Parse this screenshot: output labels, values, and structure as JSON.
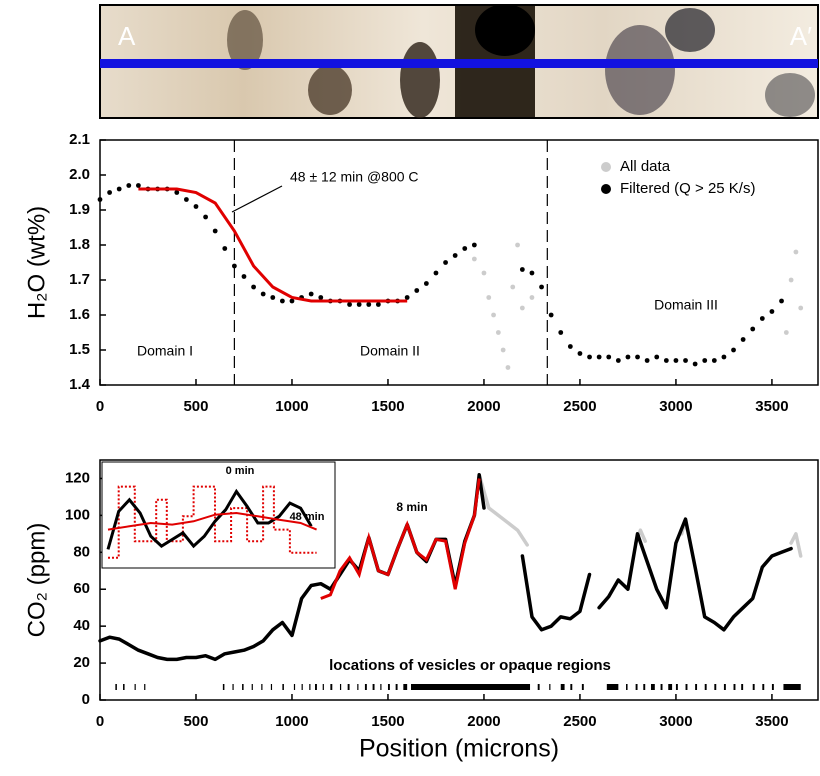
{
  "profile_labels": {
    "left": "A",
    "right": "A′"
  },
  "chart_data": [
    {
      "type": "scatter",
      "ylabel": "H₂O (wt%)",
      "xlim": [
        0,
        3740
      ],
      "xticks": [
        0,
        500,
        1000,
        1500,
        2000,
        2500,
        3000,
        3500
      ],
      "ylim": [
        1.4,
        2.1
      ],
      "yticks": [
        1.4,
        1.5,
        1.6,
        1.7,
        1.8,
        1.9,
        {
          "value": 2,
          "label": "2.0"
        },
        2.1
      ],
      "legend": "upper right",
      "series": [
        {
          "name": "All data",
          "color": "#cccccc",
          "x": [
            1950,
            2000,
            2025,
            2050,
            2075,
            2100,
            2125,
            2150,
            2175,
            2200,
            2250,
            3575,
            3600,
            3625,
            3650
          ],
          "values": [
            1.76,
            1.72,
            1.65,
            1.6,
            1.55,
            1.5,
            1.45,
            1.68,
            1.8,
            1.62,
            1.65,
            1.55,
            1.7,
            1.78,
            1.62
          ]
        },
        {
          "name": "Filtered (Q > 25 K/s)",
          "color": "#000000",
          "x": [
            0,
            50,
            100,
            150,
            200,
            250,
            300,
            350,
            400,
            450,
            500,
            550,
            600,
            650,
            700,
            750,
            800,
            850,
            900,
            950,
            1000,
            1050,
            1100,
            1150,
            1200,
            1250,
            1300,
            1350,
            1400,
            1450,
            1500,
            1550,
            1600,
            1650,
            1700,
            1750,
            1800,
            1850,
            1900,
            1950,
            2200,
            2250,
            2300,
            2350,
            2400,
            2450,
            2500,
            2550,
            2600,
            2650,
            2700,
            2750,
            2800,
            2850,
            2900,
            2950,
            3000,
            3050,
            3100,
            3150,
            3200,
            3250,
            3300,
            3350,
            3400,
            3450,
            3500,
            3550
          ],
          "values": [
            1.93,
            1.95,
            1.96,
            1.97,
            1.97,
            1.96,
            1.96,
            1.96,
            1.95,
            1.93,
            1.91,
            1.88,
            1.84,
            1.79,
            1.74,
            1.71,
            1.68,
            1.66,
            1.65,
            1.64,
            1.64,
            1.65,
            1.66,
            1.65,
            1.64,
            1.64,
            1.63,
            1.63,
            1.63,
            1.63,
            1.64,
            1.64,
            1.65,
            1.67,
            1.69,
            1.72,
            1.75,
            1.77,
            1.79,
            1.8,
            1.73,
            1.72,
            1.68,
            1.6,
            1.55,
            1.51,
            1.49,
            1.48,
            1.48,
            1.48,
            1.47,
            1.48,
            1.48,
            1.47,
            1.48,
            1.47,
            1.47,
            1.47,
            1.46,
            1.47,
            1.47,
            1.48,
            1.5,
            1.53,
            1.56,
            1.59,
            1.61,
            1.64
          ]
        }
      ],
      "fit": {
        "color": "#e00000",
        "x": [
          200,
          300,
          400,
          500,
          600,
          700,
          800,
          900,
          1000,
          1100,
          1200,
          1300,
          1400,
          1500,
          1600
        ],
        "values": [
          1.96,
          1.96,
          1.96,
          1.95,
          1.92,
          1.84,
          1.74,
          1.68,
          1.65,
          1.64,
          1.64,
          1.64,
          1.64,
          1.64,
          1.64
        ]
      },
      "vlines": [
        700,
        2330
      ],
      "annotations": {
        "fit_label": "48 ± 12 min @800 C",
        "domains": [
          "Domain I",
          "Domain II",
          "Domain III"
        ]
      }
    },
    {
      "type": "line",
      "xlabel": "Position (microns)",
      "ylabel": "CO₂ (ppm)",
      "xlim": [
        0,
        3740
      ],
      "xticks": [
        0,
        500,
        1000,
        1500,
        2000,
        2500,
        3000,
        3500
      ],
      "ylim": [
        0,
        130
      ],
      "yticks": [
        0,
        20,
        40,
        60,
        80,
        100,
        120
      ],
      "series": [
        {
          "color": "#cccccc",
          "x": [
            1975,
            2025,
            2075,
            2125,
            2175,
            2225,
            2500,
            2790,
            2815,
            2840,
            2900,
            3030,
            3045,
            3060,
            3100,
            3600,
            3625,
            3650
          ],
          "values": [
            122,
            104,
            100,
            96,
            92,
            84,
            null,
            85,
            92,
            86,
            null,
            90,
            96,
            92,
            null,
            85,
            90,
            78
          ]
        },
        {
          "color": "#000000",
          "x": [
            0,
            50,
            100,
            150,
            200,
            250,
            300,
            350,
            400,
            450,
            500,
            550,
            600,
            650,
            700,
            750,
            800,
            850,
            900,
            950,
            1000,
            1050,
            1100,
            1150,
            1200,
            1250,
            1300,
            1350,
            1400,
            1450,
            1500,
            1550,
            1600,
            1650,
            1700,
            1750,
            1800,
            1850,
            1900,
            1950,
            1975,
            2000,
            2100,
            2200,
            2250,
            2300,
            2350,
            2400,
            2450,
            2500,
            2550,
            2575,
            2600,
            2650,
            2700,
            2750,
            2800,
            2850,
            2900,
            2950,
            3000,
            3050,
            3100,
            3150,
            3200,
            3250,
            3300,
            3350,
            3400,
            3450,
            3500,
            3550,
            3600
          ],
          "values": [
            32,
            34,
            33,
            30,
            27,
            25,
            23,
            22,
            22,
            23,
            23,
            24,
            22,
            25,
            26,
            27,
            29,
            32,
            38,
            42,
            35,
            55,
            62,
            63,
            60,
            68,
            76,
            70,
            88,
            70,
            68,
            82,
            95,
            80,
            75,
            87,
            87,
            62,
            86,
            100,
            122,
            104,
            null,
            78,
            45,
            38,
            40,
            45,
            44,
            48,
            68,
            null,
            50,
            56,
            65,
            60,
            90,
            75,
            60,
            50,
            85,
            98,
            72,
            45,
            42,
            38,
            45,
            50,
            55,
            72,
            78,
            80,
            82
          ]
        }
      ],
      "fit": {
        "color": "#e00000",
        "x": [
          1150,
          1200,
          1250,
          1300,
          1350,
          1400,
          1450,
          1500,
          1550,
          1600,
          1650,
          1700,
          1750,
          1800,
          1850,
          1900,
          1950,
          1975
        ],
        "values": [
          55,
          57,
          70,
          77,
          68,
          88,
          70,
          68,
          82,
          95,
          80,
          76,
          87,
          86,
          60,
          85,
          100,
          120
        ]
      },
      "vesicle_ranges": [
        [
          80,
          88
        ],
        [
          120,
          128
        ],
        [
          180,
          186
        ],
        [
          230,
          236
        ],
        [
          640,
          648
        ],
        [
          690,
          696
        ],
        [
          740,
          748
        ],
        [
          790,
          796
        ],
        [
          840,
          846
        ],
        [
          890,
          896
        ],
        [
          950,
          958
        ],
        [
          1010,
          1016
        ],
        [
          1050,
          1056
        ],
        [
          1090,
          1096
        ],
        [
          1120,
          1130
        ],
        [
          1160,
          1166
        ],
        [
          1200,
          1210
        ],
        [
          1250,
          1256
        ],
        [
          1290,
          1300
        ],
        [
          1340,
          1346
        ],
        [
          1380,
          1390
        ],
        [
          1420,
          1430
        ],
        [
          1460,
          1466
        ],
        [
          1500,
          1510
        ],
        [
          1540,
          1550
        ],
        [
          1580,
          1600
        ],
        [
          1620,
          2240
        ],
        [
          2280,
          2290
        ],
        [
          2340,
          2346
        ],
        [
          2400,
          2420
        ],
        [
          2450,
          2460
        ],
        [
          2510,
          2520
        ],
        [
          2640,
          2700
        ],
        [
          2740,
          2748
        ],
        [
          2790,
          2800
        ],
        [
          2830,
          2840
        ],
        [
          2870,
          2890
        ],
        [
          2920,
          2930
        ],
        [
          2960,
          2980
        ],
        [
          3000,
          3010
        ],
        [
          3050,
          3060
        ],
        [
          3100,
          3110
        ],
        [
          3150,
          3160
        ],
        [
          3200,
          3210
        ],
        [
          3250,
          3260
        ],
        [
          3300,
          3310
        ],
        [
          3340,
          3350
        ],
        [
          3400,
          3410
        ],
        [
          3450,
          3460
        ],
        [
          3500,
          3510
        ],
        [
          3560,
          3650
        ]
      ],
      "annotations": {
        "fit_label": "8 min",
        "vesicles_label": "locations of vesicles or opaque regions"
      },
      "inset": {
        "xlim": [
          0,
          20
        ],
        "ylim": [
          70,
          128
        ],
        "data": {
          "color": "#000000",
          "x": [
            0,
            1,
            2,
            3,
            4,
            5,
            6,
            7,
            8,
            9,
            10,
            11,
            12,
            13,
            14,
            15,
            16,
            17,
            18,
            19
          ],
          "values": [
            80,
            103,
            110,
            102,
            88,
            82,
            86,
            90,
            82,
            88,
            97,
            104,
            115,
            106,
            96,
            96,
            100,
            108,
            105,
            94
          ]
        },
        "initial": {
          "name": "0 min",
          "color": "#e00000",
          "x": [
            0,
            1,
            1,
            2.5,
            2.5,
            4.5,
            4.5,
            5.5,
            5.5,
            7,
            7,
            8,
            8,
            10,
            10,
            11.5,
            11.5,
            13,
            13,
            14.5,
            14.5,
            15.5,
            15.5,
            17,
            17,
            18,
            18,
            19.5
          ],
          "values": [
            75,
            75,
            118,
            118,
            85,
            85,
            110,
            110,
            85,
            85,
            100,
            100,
            118,
            118,
            85,
            85,
            105,
            105,
            85,
            85,
            118,
            118,
            92,
            92,
            78,
            78,
            78,
            78
          ]
        },
        "final": {
          "name": "48 min",
          "color": "#e00000",
          "x": [
            0,
            2,
            4,
            6,
            8,
            10,
            12,
            14,
            16,
            18,
            19.5
          ],
          "values": [
            92,
            94,
            96,
            95,
            97,
            101,
            102,
            100,
            98,
            96,
            92
          ]
        }
      }
    }
  ]
}
